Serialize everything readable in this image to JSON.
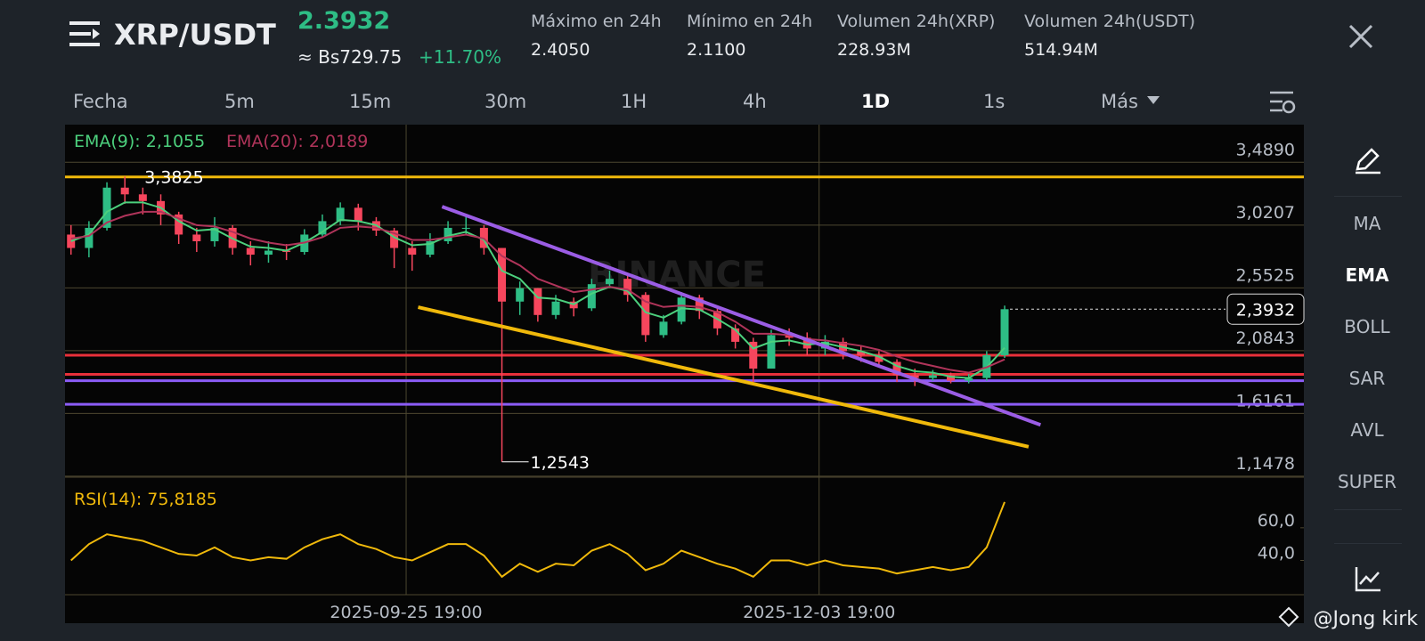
{
  "header": {
    "symbol": "XRP/USDT",
    "price": "2.3932",
    "fiat": "≈ Bs729.75",
    "change": "+11.70%",
    "stats": [
      {
        "label": "Máximo en 24h",
        "value": "2.4050"
      },
      {
        "label": "Mínimo en 24h",
        "value": "2.1100"
      },
      {
        "label": "Volumen 24h(XRP)",
        "value": "228.93M"
      },
      {
        "label": "Volumen 24h(USDT)",
        "value": "514.94M"
      }
    ]
  },
  "tabs": [
    "Fecha",
    "5m",
    "15m",
    "30m",
    "1H",
    "4h",
    "1D",
    "1s",
    "Más"
  ],
  "active_tab": 6,
  "indicators": [
    "MA",
    "EMA",
    "BOLL",
    "SAR",
    "AVL",
    "SUPER"
  ],
  "active_indicator": 1,
  "watermark": "BINANCE",
  "author": "@Jong kirk",
  "chart_data": [
    {
      "type": "candlestick",
      "x": [
        "2025-07-31 19:00",
        "2025-08-03 19:00",
        "2025-08-06 19:00",
        "2025-08-09 19:00",
        "2025-08-12 19:00",
        "2025-08-15 19:00",
        "2025-08-18 19:00",
        "2025-08-21 19:00",
        "2025-08-24 19:00",
        "2025-08-27 19:00",
        "2025-08-30 19:00",
        "2025-09-02 19:00",
        "2025-09-05 19:00",
        "2025-09-08 19:00",
        "2025-09-11 19:00",
        "2025-09-14 19:00",
        "2025-09-17 19:00",
        "2025-09-20 19:00",
        "2025-09-23 19:00",
        "2025-09-26 19:00",
        "2025-09-29 19:00",
        "2025-10-02 19:00",
        "2025-10-05 19:00",
        "2025-10-08 19:00",
        "2025-10-11 19:00",
        "2025-10-14 19:00",
        "2025-10-17 19:00",
        "2025-10-20 19:00",
        "2025-10-23 19:00",
        "2025-10-26 19:00",
        "2025-10-29 19:00",
        "2025-11-01 19:00",
        "2025-11-04 19:00",
        "2025-11-07 19:00",
        "2025-11-10 19:00",
        "2025-11-13 19:00",
        "2025-11-16 19:00",
        "2025-11-19 19:00",
        "2025-11-22 19:00",
        "2025-11-25 19:00",
        "2025-11-28 19:00",
        "2025-12-01 19:00",
        "2025-12-04 19:00",
        "2025-12-07 19:00",
        "2025-12-10 19:00",
        "2025-12-13 19:00",
        "2025-12-16 19:00",
        "2025-12-19 19:00",
        "2025-12-22 19:00",
        "2025-12-25 19:00",
        "2025-12-28 19:00",
        "2025-12-31 19:00",
        "2026-01-03 19:00"
      ],
      "open": [
        2.95,
        2.85,
        3.0,
        3.3,
        3.25,
        3.2,
        3.1,
        2.95,
        2.9,
        3.0,
        2.85,
        2.8,
        2.83,
        2.82,
        2.95,
        3.05,
        3.15,
        3.05,
        2.98,
        2.85,
        2.8,
        2.9,
        3.0,
        3.0,
        2.85,
        2.45,
        2.55,
        2.35,
        2.45,
        2.4,
        2.58,
        2.62,
        2.5,
        2.2,
        2.3,
        2.48,
        2.38,
        2.25,
        2.15,
        1.95,
        2.2,
        2.18,
        2.1,
        2.15,
        2.08,
        2.05,
        2.0,
        1.9,
        1.88,
        1.9,
        1.86,
        1.88,
        2.05
      ],
      "high": [
        3.02,
        3.05,
        3.34,
        3.3825,
        3.3,
        3.25,
        3.12,
        3.0,
        3.08,
        3.02,
        2.9,
        2.9,
        2.88,
        2.99,
        3.1,
        3.19,
        3.18,
        3.08,
        3.0,
        2.9,
        2.96,
        3.05,
        3.09,
        3.02,
        2.85,
        2.6,
        2.55,
        2.5,
        2.48,
        2.62,
        2.68,
        2.65,
        2.52,
        2.35,
        2.52,
        2.5,
        2.4,
        2.28,
        2.18,
        2.24,
        2.25,
        2.22,
        2.2,
        2.18,
        2.12,
        2.08,
        2.02,
        1.95,
        1.94,
        1.92,
        1.91,
        2.08,
        2.42
      ],
      "low": [
        2.8,
        2.78,
        2.98,
        3.18,
        3.1,
        3.02,
        2.88,
        2.82,
        2.86,
        2.8,
        2.72,
        2.74,
        2.76,
        2.8,
        2.93,
        3.02,
        2.98,
        2.94,
        2.7,
        2.68,
        2.78,
        2.88,
        2.95,
        2.8,
        1.2543,
        2.35,
        2.3,
        2.32,
        2.34,
        2.38,
        2.55,
        2.45,
        2.15,
        2.18,
        2.28,
        2.32,
        2.2,
        2.1,
        1.85,
        1.95,
        2.12,
        2.05,
        2.05,
        2.02,
        2.0,
        1.96,
        1.85,
        1.82,
        1.86,
        1.84,
        1.84,
        1.86,
        2.03
      ],
      "close": [
        2.85,
        3.0,
        3.3,
        3.25,
        3.2,
        3.1,
        2.95,
        2.9,
        3.0,
        2.85,
        2.8,
        2.83,
        2.82,
        2.95,
        3.05,
        3.15,
        3.05,
        2.98,
        2.85,
        2.8,
        2.9,
        3.0,
        3.0,
        2.85,
        2.45,
        2.55,
        2.35,
        2.45,
        2.4,
        2.58,
        2.62,
        2.5,
        2.2,
        2.3,
        2.48,
        2.38,
        2.25,
        2.15,
        1.95,
        2.2,
        2.18,
        2.1,
        2.15,
        2.08,
        2.05,
        2.0,
        1.9,
        1.88,
        1.9,
        1.86,
        1.88,
        2.05,
        2.3932
      ],
      "series": [
        {
          "name": "EMA(9): 2,1055",
          "color": "#4cd07d",
          "values": [
            2.9,
            2.95,
            3.12,
            3.19,
            3.19,
            3.15,
            3.05,
            2.98,
            2.99,
            2.92,
            2.86,
            2.85,
            2.83,
            2.89,
            2.97,
            3.06,
            3.05,
            3.02,
            2.93,
            2.87,
            2.88,
            2.94,
            2.97,
            2.91,
            2.68,
            2.62,
            2.48,
            2.47,
            2.43,
            2.51,
            2.56,
            2.53,
            2.37,
            2.33,
            2.4,
            2.39,
            2.32,
            2.24,
            2.1,
            2.15,
            2.16,
            2.13,
            2.14,
            2.11,
            2.08,
            2.04,
            1.97,
            1.93,
            1.92,
            1.89,
            1.88,
            1.96,
            2.1055
          ]
        },
        {
          "name": "EMA(20): 2,0189",
          "color": "#b0345a",
          "values": [
            2.92,
            2.94,
            3.04,
            3.09,
            3.12,
            3.12,
            3.07,
            3.02,
            3.01,
            2.97,
            2.92,
            2.89,
            2.87,
            2.89,
            2.93,
            3.0,
            3.01,
            3.0,
            2.96,
            2.91,
            2.91,
            2.93,
            2.95,
            2.92,
            2.79,
            2.72,
            2.62,
            2.57,
            2.52,
            2.54,
            2.56,
            2.54,
            2.45,
            2.41,
            2.42,
            2.41,
            2.37,
            2.3,
            2.21,
            2.21,
            2.2,
            2.17,
            2.16,
            2.14,
            2.12,
            2.09,
            2.04,
            2.0,
            1.97,
            1.94,
            1.92,
            1.96,
            2.0189
          ]
        }
      ],
      "up_color": "#2ebd85",
      "down_color": "#f6465d",
      "xlim": [
        "2025-07-30 19:00",
        "2026-02-22 19:00"
      ],
      "xticks": [
        "2025-09-25 19:00",
        "2025-12-03 19:00"
      ],
      "ylim": [
        1.14,
        3.77
      ],
      "yticks": [
        {
          "value": 3.489,
          "label": "3,4890"
        },
        {
          "value": 3.0207,
          "label": "3,0207"
        },
        {
          "value": 2.5525,
          "label": "2,5525"
        },
        {
          "value": 2.0843,
          "label": "2,0843"
        },
        {
          "value": 1.6161,
          "label": "1,6161"
        },
        {
          "value": 1.1478,
          "label": "1,1478"
        }
      ],
      "levels": [
        {
          "value": 3.38,
          "color": "#f0b90b"
        },
        {
          "value": 2.05,
          "color": "#e8303a"
        },
        {
          "value": 1.907,
          "color": "#e8303a"
        },
        {
          "value": 1.86,
          "color": "#8b5cf6"
        },
        {
          "value": 1.684,
          "color": "#8b5cf6"
        }
      ],
      "trendlines": [
        {
          "x": [
            "2025-10-01 19:00",
            "2026-01-09 19:00"
          ],
          "y": [
            3.158,
            1.53
          ],
          "color": "#9b5de5"
        },
        {
          "x": [
            "2025-09-27 19:00",
            "2026-01-07 19:00"
          ],
          "y": [
            2.408,
            1.367
          ],
          "color": "#f0b90b"
        }
      ],
      "annotations": [
        {
          "value": 3.3825,
          "label": "3,3825"
        },
        {
          "value": 1.2543,
          "label": "1,2543"
        }
      ],
      "last_price": {
        "value": 2.3932,
        "label": "2,3932"
      }
    },
    {
      "type": "line",
      "series": [
        {
          "name": "RSI(14): 75,8185",
          "color": "#f0b90b",
          "values": [
            40,
            50,
            56,
            54,
            52,
            48,
            44,
            43,
            48,
            42,
            40,
            42,
            41,
            48,
            53,
            56,
            50,
            47,
            42,
            40,
            45,
            50,
            50,
            43,
            30,
            38,
            33,
            38,
            37,
            46,
            50,
            44,
            34,
            38,
            46,
            42,
            38,
            35,
            30,
            40,
            40,
            37,
            40,
            37,
            36,
            35,
            32,
            34,
            36,
            34,
            36,
            48,
            75.8185
          ]
        }
      ],
      "ylim": [
        19,
        91
      ],
      "yticks": [
        {
          "value": 60,
          "label": "60,0"
        },
        {
          "value": 40,
          "label": "40,0"
        }
      ]
    }
  ]
}
